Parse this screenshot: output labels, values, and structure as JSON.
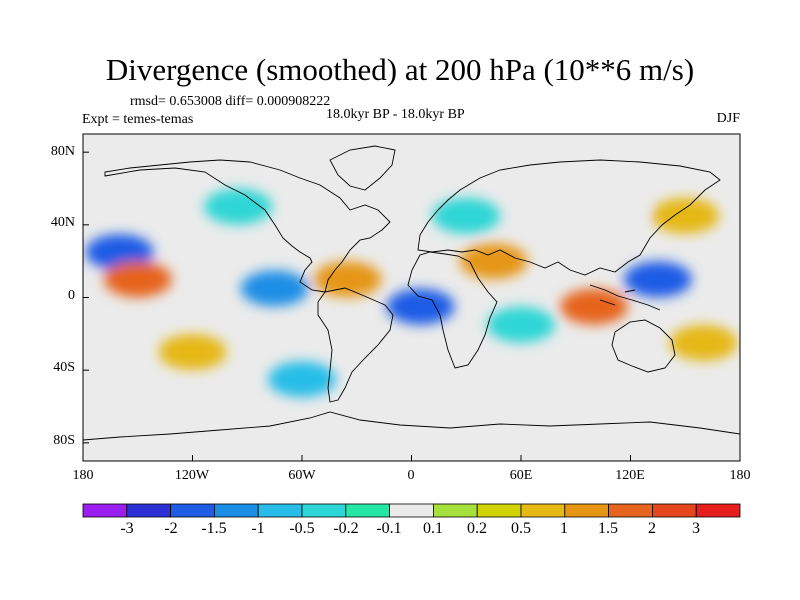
{
  "title": "Divergence (smoothed) at 200 hPa (10**6 m/s)",
  "stats": "rmsd= 0.653008 diff= 0.000908222",
  "expt": "Expt = temes-temas",
  "period": "18.0kyr BP - 18.0kyr BP",
  "season": "DJF",
  "map": {
    "projection": "cylindrical-equidistant",
    "lon_range": [
      -180,
      180
    ],
    "lat_range": [
      -90,
      90
    ],
    "lat_ticks": [
      {
        "value": 80,
        "label": "80N"
      },
      {
        "value": 40,
        "label": "40N"
      },
      {
        "value": 0,
        "label": "0"
      },
      {
        "value": -40,
        "label": "40S"
      },
      {
        "value": -80,
        "label": "80S"
      }
    ],
    "lon_ticks": [
      {
        "value": -180,
        "label": "180"
      },
      {
        "value": -120,
        "label": "120W"
      },
      {
        "value": -60,
        "label": "60W"
      },
      {
        "value": 0,
        "label": "0"
      },
      {
        "value": 60,
        "label": "60E"
      },
      {
        "value": 120,
        "label": "120E"
      },
      {
        "value": 180,
        "label": "180"
      }
    ]
  },
  "colorbar": {
    "colors": [
      "#9b1ef0",
      "#2a32d6",
      "#1e5ce6",
      "#1c8ee6",
      "#28bde8",
      "#2dd6d6",
      "#26e6a6",
      "#ebebeb",
      "#a6e03c",
      "#d2d200",
      "#e6b814",
      "#e69614",
      "#e6641e",
      "#e6461e",
      "#e61e1e"
    ],
    "labels": [
      "-3",
      "-2",
      "-1.5",
      "-1",
      "-0.5",
      "-0.2",
      "-0.1",
      "0.1",
      "0.2",
      "0.5",
      "1",
      "1.5",
      "2",
      "3"
    ]
  },
  "features": [
    {
      "lon": -160,
      "lat": 25,
      "value": -2
    },
    {
      "lon": -150,
      "lat": 10,
      "value": 1.5
    },
    {
      "lon": -95,
      "lat": 50,
      "value": -0.5
    },
    {
      "lon": -75,
      "lat": 5,
      "value": -1.5
    },
    {
      "lon": -60,
      "lat": -45,
      "value": -1
    },
    {
      "lon": -35,
      "lat": 10,
      "value": 1
    },
    {
      "lon": 5,
      "lat": -5,
      "value": -2
    },
    {
      "lon": 30,
      "lat": 45,
      "value": -0.5
    },
    {
      "lon": 45,
      "lat": 20,
      "value": 1
    },
    {
      "lon": 60,
      "lat": -15,
      "value": -0.5
    },
    {
      "lon": 100,
      "lat": -5,
      "value": 1.5
    },
    {
      "lon": 135,
      "lat": 10,
      "value": -2
    },
    {
      "lon": 150,
      "lat": 45,
      "value": 0.5
    },
    {
      "lon": 160,
      "lat": -25,
      "value": 0.5
    },
    {
      "lon": -120,
      "lat": -30,
      "value": 0.5
    },
    {
      "lon": 110,
      "lat": 50,
      "value": -0.1
    }
  ]
}
